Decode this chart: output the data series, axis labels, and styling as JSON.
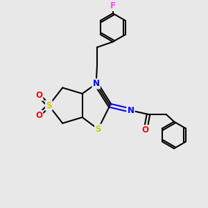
{
  "background_color": "#e8e8e8",
  "bond_color": "#000000",
  "atom_colors": {
    "S": "#cccc00",
    "N": "#0000ff",
    "O": "#ff0000",
    "F": "#ff44ff",
    "C": "#000000"
  },
  "line_width": 1.5,
  "font_size": 8.5
}
